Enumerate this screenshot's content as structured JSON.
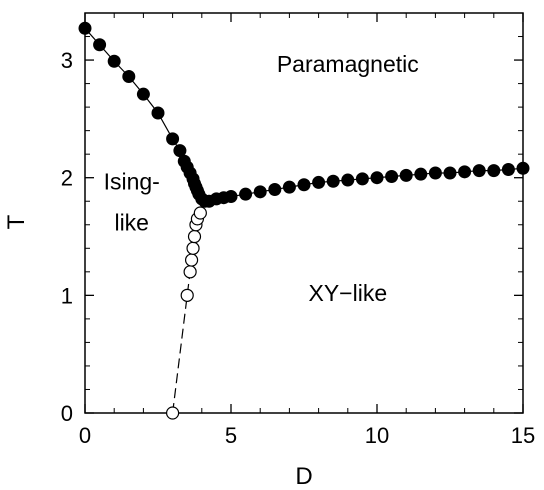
{
  "chart_data": {
    "type": "scatter",
    "xlabel": "D",
    "ylabel": "T",
    "xlim": [
      0,
      15
    ],
    "ylim": [
      0,
      3.4
    ],
    "xticks": [
      0,
      5,
      10,
      15
    ],
    "yticks": [
      0,
      1,
      2,
      3
    ],
    "grid": false,
    "annotations": [
      {
        "text": "Paramagnetic",
        "x": 9.0,
        "y": 2.9
      },
      {
        "text": "Ising-",
        "x": 1.6,
        "y": 1.9
      },
      {
        "text": "like",
        "x": 1.6,
        "y": 1.55
      },
      {
        "text": "XY−like",
        "x": 9.0,
        "y": 0.95
      }
    ],
    "series": [
      {
        "marker": "filled-circle",
        "line": "solid",
        "points": [
          [
            0.0,
            3.27
          ],
          [
            0.5,
            3.13
          ],
          [
            1.0,
            2.99
          ],
          [
            1.5,
            2.86
          ],
          [
            2.0,
            2.71
          ],
          [
            2.5,
            2.55
          ],
          [
            3.0,
            2.33
          ],
          [
            3.25,
            2.23
          ],
          [
            3.4,
            2.14
          ],
          [
            3.5,
            2.09
          ],
          [
            3.6,
            2.04
          ],
          [
            3.7,
            1.99
          ],
          [
            3.75,
            1.95
          ],
          [
            3.8,
            1.92
          ],
          [
            3.85,
            1.89
          ],
          [
            3.9,
            1.86
          ],
          [
            4.0,
            1.82
          ],
          [
            4.1,
            1.8
          ],
          [
            4.25,
            1.8
          ],
          [
            4.5,
            1.82
          ],
          [
            4.75,
            1.83
          ],
          [
            5.0,
            1.84
          ],
          [
            5.5,
            1.86
          ],
          [
            6.0,
            1.88
          ],
          [
            6.5,
            1.9
          ],
          [
            7.0,
            1.92
          ],
          [
            7.5,
            1.94
          ],
          [
            8.0,
            1.96
          ],
          [
            8.5,
            1.97
          ],
          [
            9.0,
            1.98
          ],
          [
            9.5,
            1.99
          ],
          [
            10.0,
            2.0
          ],
          [
            10.5,
            2.01
          ],
          [
            11.0,
            2.02
          ],
          [
            11.5,
            2.03
          ],
          [
            12.0,
            2.04
          ],
          [
            12.5,
            2.04
          ],
          [
            13.0,
            2.05
          ],
          [
            13.5,
            2.06
          ],
          [
            14.0,
            2.06
          ],
          [
            14.5,
            2.07
          ],
          [
            15.0,
            2.08
          ]
        ]
      },
      {
        "marker": "open-circle",
        "line": "dashed",
        "points": [
          [
            3.0,
            0.0
          ],
          [
            3.5,
            1.0
          ],
          [
            3.6,
            1.2
          ],
          [
            3.65,
            1.3
          ],
          [
            3.7,
            1.4
          ],
          [
            3.75,
            1.5
          ],
          [
            3.8,
            1.6
          ],
          [
            3.85,
            1.65
          ],
          [
            3.95,
            1.7
          ]
        ]
      }
    ]
  }
}
